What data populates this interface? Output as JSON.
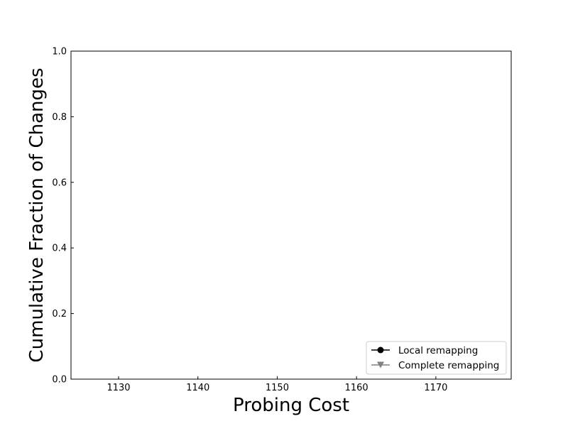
{
  "chart_data": {
    "type": "line",
    "title": "",
    "xlabel": "Probing Cost",
    "ylabel": "Cumulative Fraction of Changes",
    "xlim": [
      1124,
      1179.5
    ],
    "ylim": [
      0.0,
      1.0
    ],
    "x_ticks": [
      1130,
      1140,
      1150,
      1160,
      1170
    ],
    "x_tick_labels": [
      "1130",
      "1140",
      "1150",
      "1160",
      "1170"
    ],
    "y_ticks": [
      0.0,
      0.2,
      0.4,
      0.6,
      0.8,
      1.0
    ],
    "y_tick_labels": [
      "0.0",
      "0.2",
      "0.4",
      "0.6",
      "0.8",
      "1.0"
    ],
    "grid": false,
    "legend_position": "bottom-right",
    "series": [
      {
        "name": "Local remapping",
        "color": "#000000",
        "marker": "circle",
        "x": [],
        "y": []
      },
      {
        "name": "Complete remapping",
        "color": "#808080",
        "marker": "triangle-down",
        "x": [],
        "y": []
      }
    ]
  }
}
